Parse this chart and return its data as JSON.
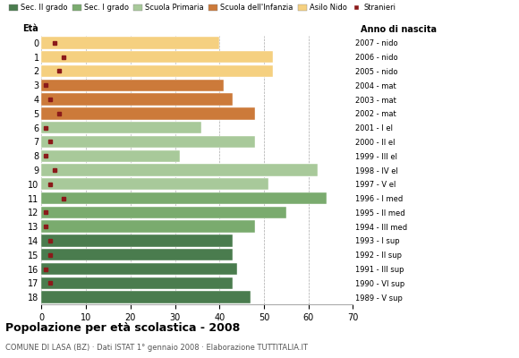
{
  "ages": [
    18,
    17,
    16,
    15,
    14,
    13,
    12,
    11,
    10,
    9,
    8,
    7,
    6,
    5,
    4,
    3,
    2,
    1,
    0
  ],
  "years": [
    "1989 - V sup",
    "1990 - VI sup",
    "1991 - III sup",
    "1992 - II sup",
    "1993 - I sup",
    "1994 - III med",
    "1995 - II med",
    "1996 - I med",
    "1997 - V el",
    "1998 - IV el",
    "1999 - III el",
    "2000 - II el",
    "2001 - I el",
    "2002 - mat",
    "2003 - mat",
    "2004 - mat",
    "2005 - nido",
    "2006 - nido",
    "2007 - nido"
  ],
  "bar_values": [
    47,
    43,
    44,
    43,
    43,
    48,
    55,
    64,
    51,
    62,
    31,
    48,
    36,
    48,
    43,
    41,
    52,
    52,
    40
  ],
  "stranieri": [
    0,
    2,
    1,
    2,
    2,
    1,
    1,
    5,
    2,
    3,
    1,
    2,
    1,
    4,
    2,
    1,
    4,
    5,
    3
  ],
  "bar_colors": [
    "#4a7c4e",
    "#4a7c4e",
    "#4a7c4e",
    "#4a7c4e",
    "#4a7c4e",
    "#7aab6e",
    "#7aab6e",
    "#7aab6e",
    "#a8c99a",
    "#a8c99a",
    "#a8c99a",
    "#a8c99a",
    "#a8c99a",
    "#cc7a3a",
    "#cc7a3a",
    "#cc7a3a",
    "#f5d080",
    "#f5d080",
    "#f5d080"
  ],
  "stranieri_color": "#8b1a1a",
  "legend_labels": [
    "Sec. II grado",
    "Sec. I grado",
    "Scuola Primaria",
    "Scuola dell'Infanzia",
    "Asilo Nido",
    "Stranieri"
  ],
  "legend_colors": [
    "#4a7c4e",
    "#7aab6e",
    "#a8c99a",
    "#cc7a3a",
    "#f5d080",
    "#8b1a1a"
  ],
  "title": "Popolazione per età scolastica - 2008",
  "subtitle": "COMUNE DI LASA (BZ) · Dati ISTAT 1° gennaio 2008 · Elaborazione TUTTITALIA.IT",
  "xlabel_eta": "Età",
  "xlabel_anno": "Anno di nascita",
  "xlim": [
    0,
    70
  ],
  "xticks": [
    0,
    10,
    20,
    30,
    40,
    50,
    60,
    70
  ],
  "background_color": "#ffffff",
  "bar_height": 0.85
}
